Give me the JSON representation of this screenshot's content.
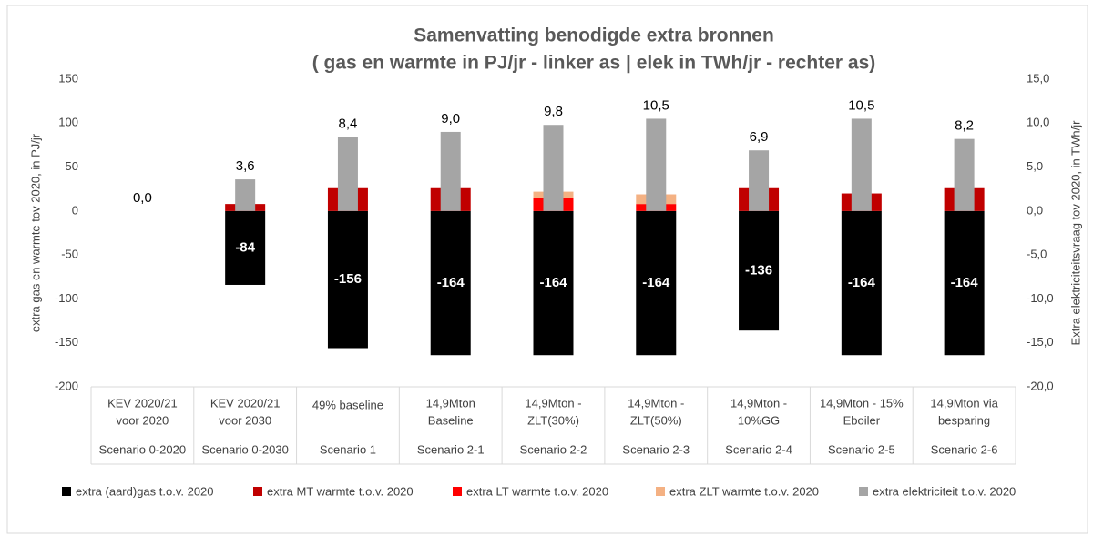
{
  "chart_data": {
    "type": "bar",
    "title": [
      "Samenvatting benodigde extra bronnen",
      "( gas en warmte in PJ/jr - linker as | elek in TWh/jr -  rechter as)"
    ],
    "ylabel": "extra gas en warmte tov 2020, in PJ/jr",
    "y2label": "Extra elektriciteitsvraag tov 2020, in TWh/jr",
    "categories": [
      [
        "KEV 2020/21",
        "voor 2020"
      ],
      [
        "KEV 2020/21",
        "voor 2030"
      ],
      [
        "49% baseline"
      ],
      [
        "14,9Mton",
        "Baseline"
      ],
      [
        "14,9Mton -",
        "ZLT(30%)"
      ],
      [
        "14,9Mton -",
        "ZLT(50%)"
      ],
      [
        "14,9Mton -",
        "10%GG"
      ],
      [
        "14,9Mton - 15%",
        "Eboiler"
      ],
      [
        "14,9Mton via",
        "besparing"
      ]
    ],
    "groups": [
      "Scenario 0-2020",
      "Scenario 0-2030",
      "Scenario 1",
      "Scenario 2-1",
      "Scenario 2-2",
      "Scenario 2-3",
      "Scenario 2-4",
      "Scenario 2-5",
      "Scenario 2-6"
    ],
    "series": [
      {
        "name": "extra (aard)gas t.o.v. 2020",
        "color": "#000000",
        "values": [
          0,
          -84,
          -156,
          -164,
          -164,
          -164,
          -136,
          -164,
          -164
        ]
      },
      {
        "name": "extra MT warmte t.o.v. 2020",
        "color": "#c00000",
        "values": [
          0,
          8,
          26,
          26,
          0,
          0,
          26,
          20,
          26
        ]
      },
      {
        "name": "extra LT warmte t.o.v. 2020",
        "color": "#ff0000",
        "values": [
          0,
          0,
          0,
          0,
          15,
          8,
          0,
          0,
          0
        ]
      },
      {
        "name": "extra ZLT warmte t.o.v. 2020",
        "color": "#f4b183",
        "values": [
          0,
          0,
          0,
          0,
          7,
          11,
          0,
          0,
          0
        ]
      },
      {
        "name": "extra elektriciteit t.o.v. 2020",
        "color": "#a5a5a5",
        "axis": "y2",
        "values": [
          0.0,
          3.6,
          8.4,
          9.0,
          9.8,
          10.5,
          6.9,
          10.5,
          8.2
        ],
        "value_labels": [
          "0,0",
          "3,6",
          "8,4",
          "9,0",
          "9,8",
          "10,5",
          "6,9",
          "10,5",
          "8,2"
        ]
      }
    ],
    "ylim": [
      -200,
      150
    ],
    "yticks": [
      -200,
      -150,
      -100,
      -50,
      0,
      50,
      100,
      150
    ],
    "y2lim": [
      -20,
      15
    ],
    "y2ticks": [
      {
        "value": -20,
        "label": "-20,0"
      },
      {
        "value": -15,
        "label": "-15,0"
      },
      {
        "value": -10,
        "label": "-10,0"
      },
      {
        "value": -5,
        "label": "-5,0"
      },
      {
        "value": 0,
        "label": "0,0"
      },
      {
        "value": 5,
        "label": "5,0"
      },
      {
        "value": 10,
        "label": "10,0"
      },
      {
        "value": 15,
        "label": "15,0"
      }
    ],
    "grid": false,
    "legend": "bottom"
  }
}
